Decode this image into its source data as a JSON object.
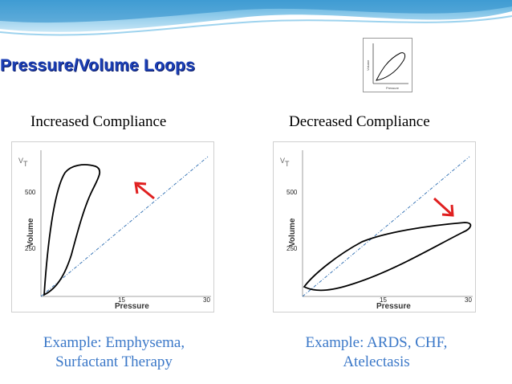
{
  "slide": {
    "title": "Pressure/Volume Loops",
    "left": {
      "heading": "Increased  Compliance",
      "example_line1": "Example: Emphysema,",
      "example_line2": "Surfactant Therapy"
    },
    "right": {
      "heading": "Decreased  Compliance",
      "example_line1": "Example: ARDS, CHF,",
      "example_line2": "Atelectasis"
    },
    "graph": {
      "y_symbol": "V",
      "y_subscript": "T",
      "ylabel": "Volume",
      "xlabel": "Pressure",
      "ytick_500": "500",
      "ytick_250": "250",
      "xtick_15": "15",
      "xtick_30": "30"
    },
    "thumbnail": {
      "ylabel": "Volume",
      "xlabel": "Pressure"
    }
  },
  "colors": {
    "title": "#1b3fb5",
    "example_text": "#3b78c8",
    "arrow": "#e02020",
    "reference_line": "#2a6bb0",
    "loop": "#000000"
  }
}
